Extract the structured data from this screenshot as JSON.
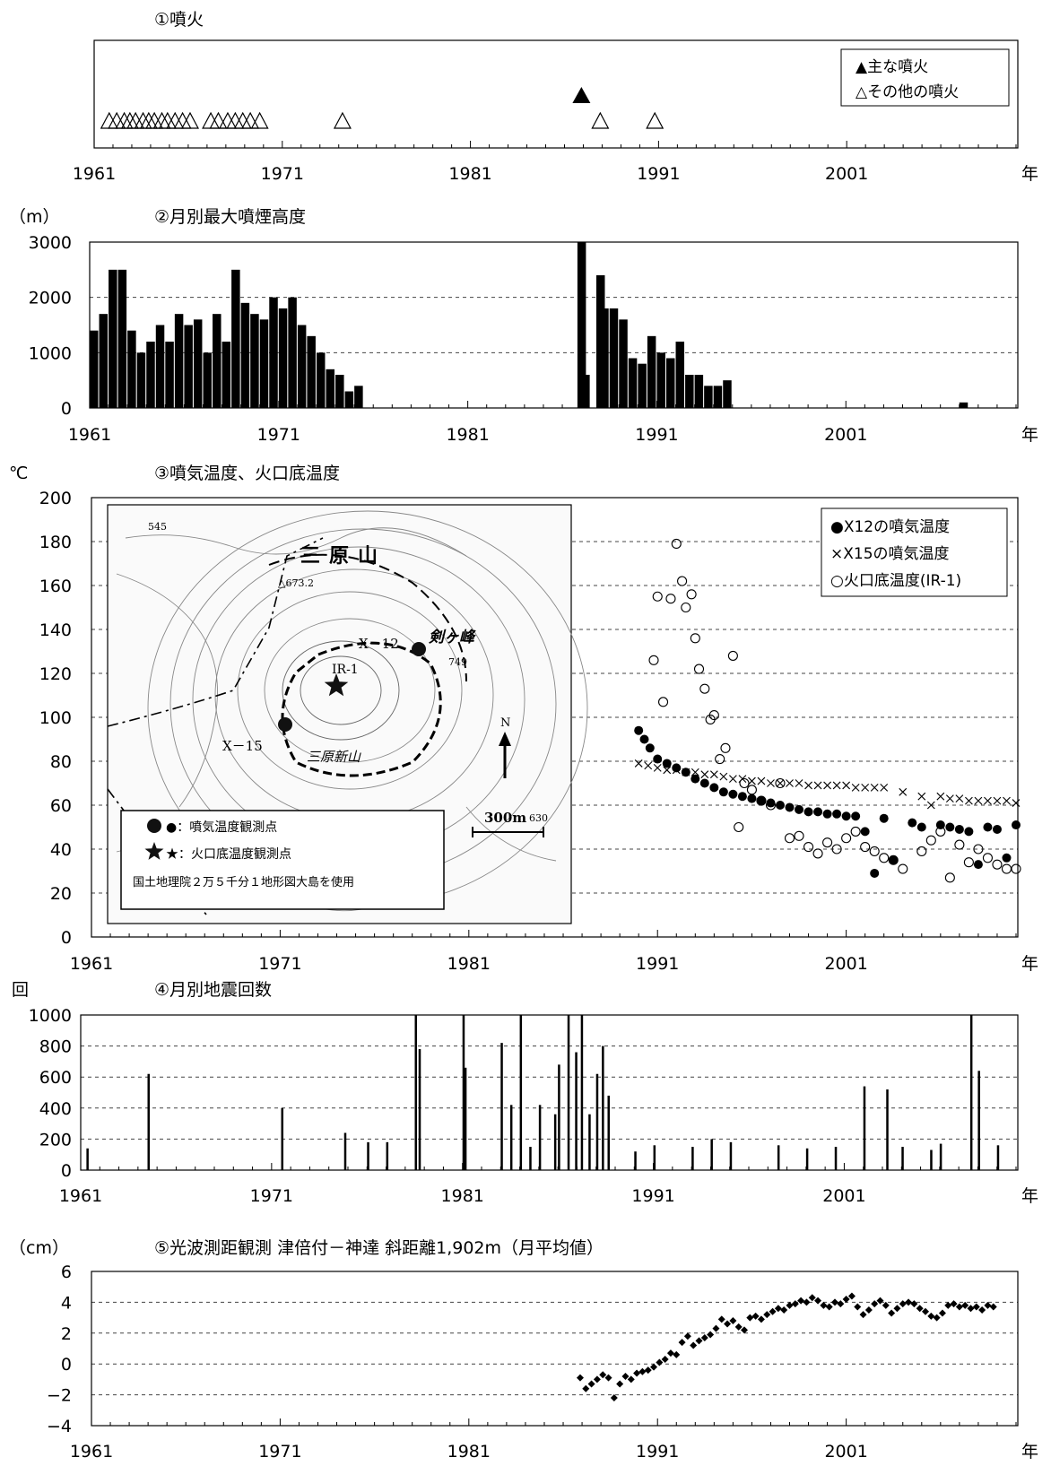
{
  "x_axis": {
    "ticks": [
      "1961",
      "1971",
      "1981",
      "1991",
      "2001"
    ],
    "unit": "年",
    "range": [
      1961,
      2010
    ]
  },
  "chart_data": [
    {
      "type": "scatter",
      "title": "①噴火",
      "xlim": [
        1961,
        2010
      ],
      "legend": {
        "position": "top-right",
        "entries": [
          "▲主な噴火",
          "△その他の噴火"
        ]
      },
      "series": [
        {
          "name": "▲主な噴火",
          "marker": "filled-triangle",
          "x": [
            1986.9
          ]
        },
        {
          "name": "△その他の噴火",
          "marker": "open-triangle",
          "x": [
            1961.8,
            1962.2,
            1962.6,
            1962.9,
            1963.2,
            1963.6,
            1963.9,
            1964.2,
            1964.6,
            1964.9,
            1965.3,
            1965.7,
            1966.1,
            1967.2,
            1967.6,
            1968.1,
            1968.5,
            1968.9,
            1969.3,
            1969.8,
            1974.2,
            1987.9,
            1990.8
          ]
        }
      ]
    },
    {
      "type": "bar",
      "title": "②月別最大噴煙高度",
      "unit": "（m）",
      "ylim": [
        0,
        3000
      ],
      "yticks": [
        "3000",
        "2000",
        "1000",
        "0"
      ],
      "grid": "dashed-horizontal",
      "x": [
        1961.0,
        1961.5,
        1962.0,
        1962.5,
        1963.0,
        1963.5,
        1964.0,
        1964.5,
        1965.0,
        1965.5,
        1966.0,
        1966.5,
        1967.0,
        1967.5,
        1968.0,
        1968.5,
        1969.0,
        1969.5,
        1970.0,
        1970.5,
        1971.0,
        1971.5,
        1972.0,
        1972.5,
        1973.0,
        1973.5,
        1974.0,
        1974.5,
        1975.0,
        1986.8,
        1987.0,
        1987.8,
        1988.0,
        1988.5,
        1989.0,
        1989.5,
        1990.0,
        1990.5,
        1991.0,
        1991.5,
        1992.0,
        1992.5,
        1993.0,
        1993.5,
        1994.0,
        1994.5,
        2007.0
      ],
      "values": [
        1400,
        1700,
        2500,
        2500,
        1400,
        1000,
        1200,
        1500,
        1200,
        1700,
        1500,
        1600,
        1000,
        1700,
        1200,
        2500,
        1900,
        1700,
        1600,
        2000,
        1800,
        2000,
        1500,
        1300,
        1000,
        700,
        600,
        300,
        400,
        3000,
        600,
        2400,
        1800,
        1800,
        1600,
        900,
        800,
        1300,
        1000,
        900,
        1200,
        600,
        600,
        400,
        400,
        500,
        100
      ]
    },
    {
      "type": "scatter",
      "title": "③噴気温度、火口底温度",
      "unit": "℃",
      "ylim": [
        0,
        200
      ],
      "yticks": [
        "200",
        "180",
        "160",
        "140",
        "120",
        "100",
        "80",
        "60",
        "40",
        "20",
        "0"
      ],
      "grid": "dashed-horizontal",
      "legend": {
        "position": "top-right"
      },
      "series": [
        {
          "name": "●X12の噴気温度",
          "marker": "filled-circle",
          "x": [
            1990.0,
            1990.3,
            1990.6,
            1991.0,
            1991.5,
            1992.0,
            1992.5,
            1993.0,
            1993.5,
            1994.0,
            1994.5,
            1995.0,
            1995.5,
            1996.0,
            1996.5,
            1997.0,
            1997.5,
            1998.0,
            1998.5,
            1999.0,
            1999.5,
            2000.0,
            2000.5,
            2001.0,
            2001.5,
            2002.0,
            2002.5,
            2003.0,
            2003.5,
            2004.5,
            2005.0,
            2006.0,
            2006.5,
            2007.0,
            2007.5,
            2008.0,
            2008.5,
            2009.0,
            2009.5,
            2010.0
          ],
          "values": [
            94,
            90,
            86,
            81,
            79,
            77,
            75,
            72,
            70,
            68,
            66,
            65,
            64,
            63,
            62,
            61,
            60,
            59,
            58,
            57,
            57,
            56,
            56,
            55,
            55,
            48,
            29,
            54,
            35,
            52,
            50,
            51,
            50,
            49,
            48,
            33,
            50,
            49,
            36,
            51
          ]
        },
        {
          "name": "×X15の噴気温度",
          "marker": "cross",
          "x": [
            1990.0,
            1990.5,
            1991.0,
            1991.5,
            1992.0,
            1992.5,
            1993.0,
            1993.5,
            1994.0,
            1994.5,
            1995.0,
            1995.5,
            1996.0,
            1996.5,
            1997.0,
            1997.5,
            1998.0,
            1998.5,
            1999.0,
            1999.5,
            2000.0,
            2000.5,
            2001.0,
            2001.5,
            2002.0,
            2002.5,
            2003.0,
            2004.0,
            2005.0,
            2005.5,
            2006.0,
            2006.5,
            2007.0,
            2007.5,
            2008.0,
            2008.5,
            2009.0,
            2009.5,
            2010.0
          ],
          "values": [
            79,
            78,
            77,
            76,
            76,
            75,
            75,
            74,
            74,
            73,
            72,
            72,
            71,
            71,
            70,
            70,
            70,
            70,
            69,
            69,
            69,
            69,
            69,
            68,
            68,
            68,
            68,
            66,
            64,
            60,
            64,
            63,
            63,
            62,
            62,
            62,
            62,
            62,
            61
          ]
        },
        {
          "name": "○火口底温度(IR-1)",
          "marker": "open-circle",
          "x": [
            1990.8,
            1991.0,
            1991.3,
            1991.7,
            1992.0,
            1992.3,
            1992.5,
            1992.8,
            1993.0,
            1993.2,
            1993.5,
            1993.8,
            1994.0,
            1994.3,
            1994.6,
            1995.0,
            1995.3,
            1995.6,
            1996.0,
            1996.5,
            1997.0,
            1997.5,
            1998.0,
            1998.5,
            1999.0,
            1999.5,
            2000.0,
            2000.5,
            2001.0,
            2001.5,
            2002.0,
            2002.5,
            2003.0,
            2003.5,
            2004.0,
            2005.0,
            2005.5,
            2006.0,
            2006.5,
            2007.0,
            2007.5,
            2008.0,
            2008.5,
            2009.0,
            2009.5,
            2010.0
          ],
          "values": [
            126,
            155,
            107,
            154,
            179,
            162,
            150,
            156,
            136,
            122,
            113,
            99,
            101,
            81,
            86,
            128,
            50,
            70,
            67,
            62,
            60,
            70,
            45,
            46,
            41,
            38,
            43,
            40,
            45,
            48,
            41,
            39,
            36,
            35,
            31,
            39,
            44,
            48,
            27,
            42,
            34,
            40,
            36,
            33,
            31,
            31
          ]
        }
      ],
      "map_inset": {
        "labels": [
          "三原山",
          "△673.2",
          "剣ヶ峰",
          "749",
          "X－12",
          "X－15",
          "IR-1",
          "三原新山",
          "N",
          "300m",
          "545",
          "630"
        ],
        "legend": [
          "●：噴気温度観測点",
          "★：火口底温度観測点",
          "国土地理院２万５千分１地形図大島を使用"
        ]
      }
    },
    {
      "type": "bar",
      "title": "④月別地震回数",
      "unit": "回",
      "ylim": [
        0,
        1000
      ],
      "yticks": [
        "1000",
        "800",
        "600",
        "400",
        "200",
        "0"
      ],
      "grid": "dashed-horizontal",
      "x": [
        1961.3,
        1964.5,
        1971.5,
        1974.8,
        1976.0,
        1977.0,
        1978.5,
        1978.7,
        1981.0,
        1981.1,
        1983.0,
        1983.5,
        1984.0,
        1984.5,
        1985.0,
        1985.8,
        1986.0,
        1986.5,
        1986.9,
        1987.2,
        1987.6,
        1988.0,
        1988.3,
        1988.6,
        1990.0,
        1991.0,
        1993.0,
        1994.0,
        1995.0,
        1997.5,
        1999.0,
        2000.5,
        2002.0,
        2003.2,
        2004.0,
        2005.5,
        2006.0,
        2007.6,
        2008.0,
        2009.0
      ],
      "values": [
        140,
        620,
        400,
        240,
        180,
        180,
        1000,
        780,
        1000,
        660,
        820,
        420,
        1000,
        150,
        420,
        360,
        680,
        1000,
        760,
        1000,
        360,
        620,
        800,
        480,
        120,
        160,
        150,
        200,
        180,
        160,
        140,
        150,
        540,
        520,
        150,
        130,
        170,
        1000,
        640,
        160
      ]
    },
    {
      "type": "scatter",
      "title": "⑤光波測距観測 津倍付－神達 斜距離1,902m（月平均値）",
      "unit": "（cm）",
      "ylim": [
        -4,
        6
      ],
      "yticks": [
        "6",
        "4",
        "2",
        "0",
        "−2",
        "−4"
      ],
      "grid": "dashed-horizontal",
      "x": [
        1986.9,
        1987.2,
        1987.5,
        1987.8,
        1988.1,
        1988.4,
        1988.7,
        1989.0,
        1989.3,
        1989.6,
        1989.9,
        1990.2,
        1990.5,
        1990.8,
        1991.1,
        1991.4,
        1991.7,
        1992.0,
        1992.3,
        1992.6,
        1992.9,
        1993.2,
        1993.5,
        1993.8,
        1994.1,
        1994.4,
        1994.7,
        1995.0,
        1995.3,
        1995.6,
        1995.9,
        1996.2,
        1996.5,
        1996.8,
        1997.1,
        1997.4,
        1997.7,
        1998.0,
        1998.3,
        1998.6,
        1998.9,
        1999.2,
        1999.5,
        1999.8,
        2000.1,
        2000.4,
        2000.7,
        2001.0,
        2001.3,
        2001.6,
        2001.9,
        2002.2,
        2002.5,
        2002.8,
        2003.1,
        2003.4,
        2003.7,
        2004.0,
        2004.3,
        2004.6,
        2004.9,
        2005.2,
        2005.5,
        2005.8,
        2006.1,
        2006.4,
        2006.7,
        2007.0,
        2007.3,
        2007.6,
        2007.9,
        2008.2,
        2008.5,
        2008.8
      ],
      "values": [
        -0.9,
        -1.6,
        -1.3,
        -1.0,
        -0.7,
        -0.9,
        -2.2,
        -1.3,
        -0.8,
        -1.0,
        -0.6,
        -0.5,
        -0.4,
        -0.2,
        0.1,
        0.3,
        0.7,
        0.6,
        1.4,
        1.8,
        1.2,
        1.5,
        1.7,
        1.9,
        2.3,
        2.9,
        2.6,
        2.8,
        2.4,
        2.2,
        3.0,
        3.1,
        2.9,
        3.2,
        3.4,
        3.6,
        3.5,
        3.8,
        3.9,
        4.1,
        4.0,
        4.3,
        4.1,
        3.8,
        3.7,
        4.0,
        3.9,
        4.2,
        4.4,
        3.7,
        3.2,
        3.5,
        3.9,
        4.1,
        3.8,
        3.3,
        3.6,
        3.9,
        4.0,
        3.9,
        3.6,
        3.4,
        3.1,
        3.0,
        3.3,
        3.8,
        3.9,
        3.7,
        3.8,
        3.6,
        3.7,
        3.5,
        3.8,
        3.7
      ]
    }
  ]
}
